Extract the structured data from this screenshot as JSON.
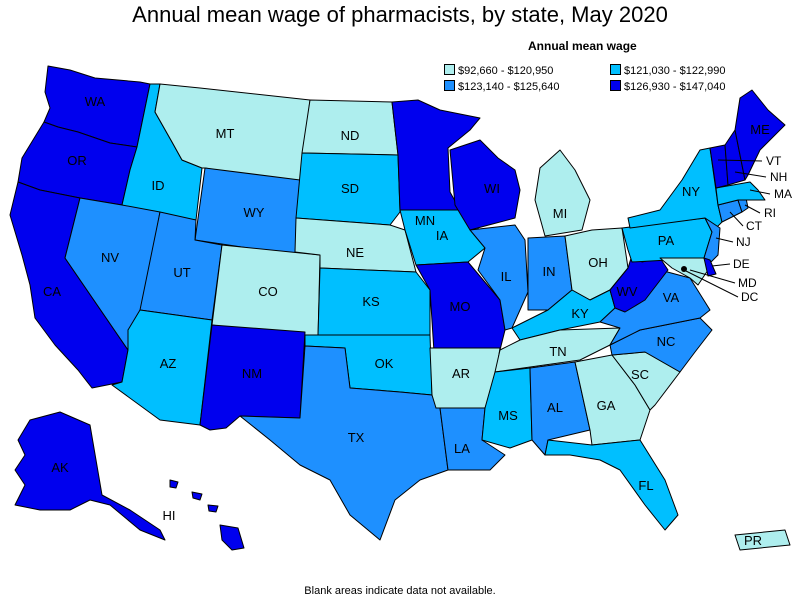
{
  "title": "Annual mean wage of pharmacists, by state, May 2020",
  "legend": {
    "title": "Annual mean wage",
    "items": [
      {
        "label": "$92,660 - $120,950",
        "color": "#aeeeee"
      },
      {
        "label": "$121,030 - $122,990",
        "color": "#00bfff"
      },
      {
        "label": "$123,140 - $125,640",
        "color": "#1e90ff"
      },
      {
        "label": "$126,930 - $147,040",
        "color": "#0000ee"
      }
    ]
  },
  "footnote": "Blank areas indicate data not available.",
  "states": {
    "WA": {
      "label": "WA",
      "tier": 3
    },
    "OR": {
      "label": "OR",
      "tier": 3
    },
    "CA": {
      "label": "CA",
      "tier": 3
    },
    "ID": {
      "label": "ID",
      "tier": 1
    },
    "NV": {
      "label": "NV",
      "tier": 2
    },
    "MT": {
      "label": "MT",
      "tier": 0
    },
    "WY": {
      "label": "WY",
      "tier": 2
    },
    "UT": {
      "label": "UT",
      "tier": 2
    },
    "AZ": {
      "label": "AZ",
      "tier": 1
    },
    "CO": {
      "label": "CO",
      "tier": 0
    },
    "NM": {
      "label": "NM",
      "tier": 3
    },
    "ND": {
      "label": "ND",
      "tier": 0
    },
    "SD": {
      "label": "SD",
      "tier": 1
    },
    "NE": {
      "label": "NE",
      "tier": 0
    },
    "KS": {
      "label": "KS",
      "tier": 1
    },
    "OK": {
      "label": "OK",
      "tier": 1
    },
    "TX": {
      "label": "TX",
      "tier": 2
    },
    "MN": {
      "label": "MN",
      "tier": 3
    },
    "IA": {
      "label": "IA",
      "tier": 1
    },
    "MO": {
      "label": "MO",
      "tier": 3
    },
    "AR": {
      "label": "AR",
      "tier": 0
    },
    "LA": {
      "label": "LA",
      "tier": 2
    },
    "WI": {
      "label": "WI",
      "tier": 3
    },
    "IL": {
      "label": "IL",
      "tier": 2
    },
    "MI": {
      "label": "MI",
      "tier": 0
    },
    "IN": {
      "label": "IN",
      "tier": 2
    },
    "OH": {
      "label": "OH",
      "tier": 0
    },
    "KY": {
      "label": "KY",
      "tier": 1
    },
    "TN": {
      "label": "TN",
      "tier": 0
    },
    "MS": {
      "label": "MS",
      "tier": 1
    },
    "AL": {
      "label": "AL",
      "tier": 2
    },
    "GA": {
      "label": "GA",
      "tier": 0
    },
    "FL": {
      "label": "FL",
      "tier": 1
    },
    "SC": {
      "label": "SC",
      "tier": 0
    },
    "NC": {
      "label": "NC",
      "tier": 2
    },
    "VA": {
      "label": "VA",
      "tier": 2
    },
    "WV": {
      "label": "WV",
      "tier": 3
    },
    "PA": {
      "label": "PA",
      "tier": 1
    },
    "NY": {
      "label": "NY",
      "tier": 1
    },
    "ME": {
      "label": "ME",
      "tier": 3
    },
    "VT": {
      "label": "VT",
      "tier": 3
    },
    "NH": {
      "label": "NH",
      "tier": 3
    },
    "MA": {
      "label": "MA",
      "tier": 1
    },
    "RI": {
      "label": "RI",
      "tier": 2
    },
    "CT": {
      "label": "CT",
      "tier": 2
    },
    "NJ": {
      "label": "NJ",
      "tier": 2
    },
    "DE": {
      "label": "DE",
      "tier": 3
    },
    "MD": {
      "label": "MD",
      "tier": 0
    },
    "DC": {
      "label": "DC",
      "tier": 3
    },
    "AK": {
      "label": "AK",
      "tier": 3
    },
    "HI": {
      "label": "HI",
      "tier": 3
    },
    "PR": {
      "label": "PR",
      "tier": 0
    }
  }
}
